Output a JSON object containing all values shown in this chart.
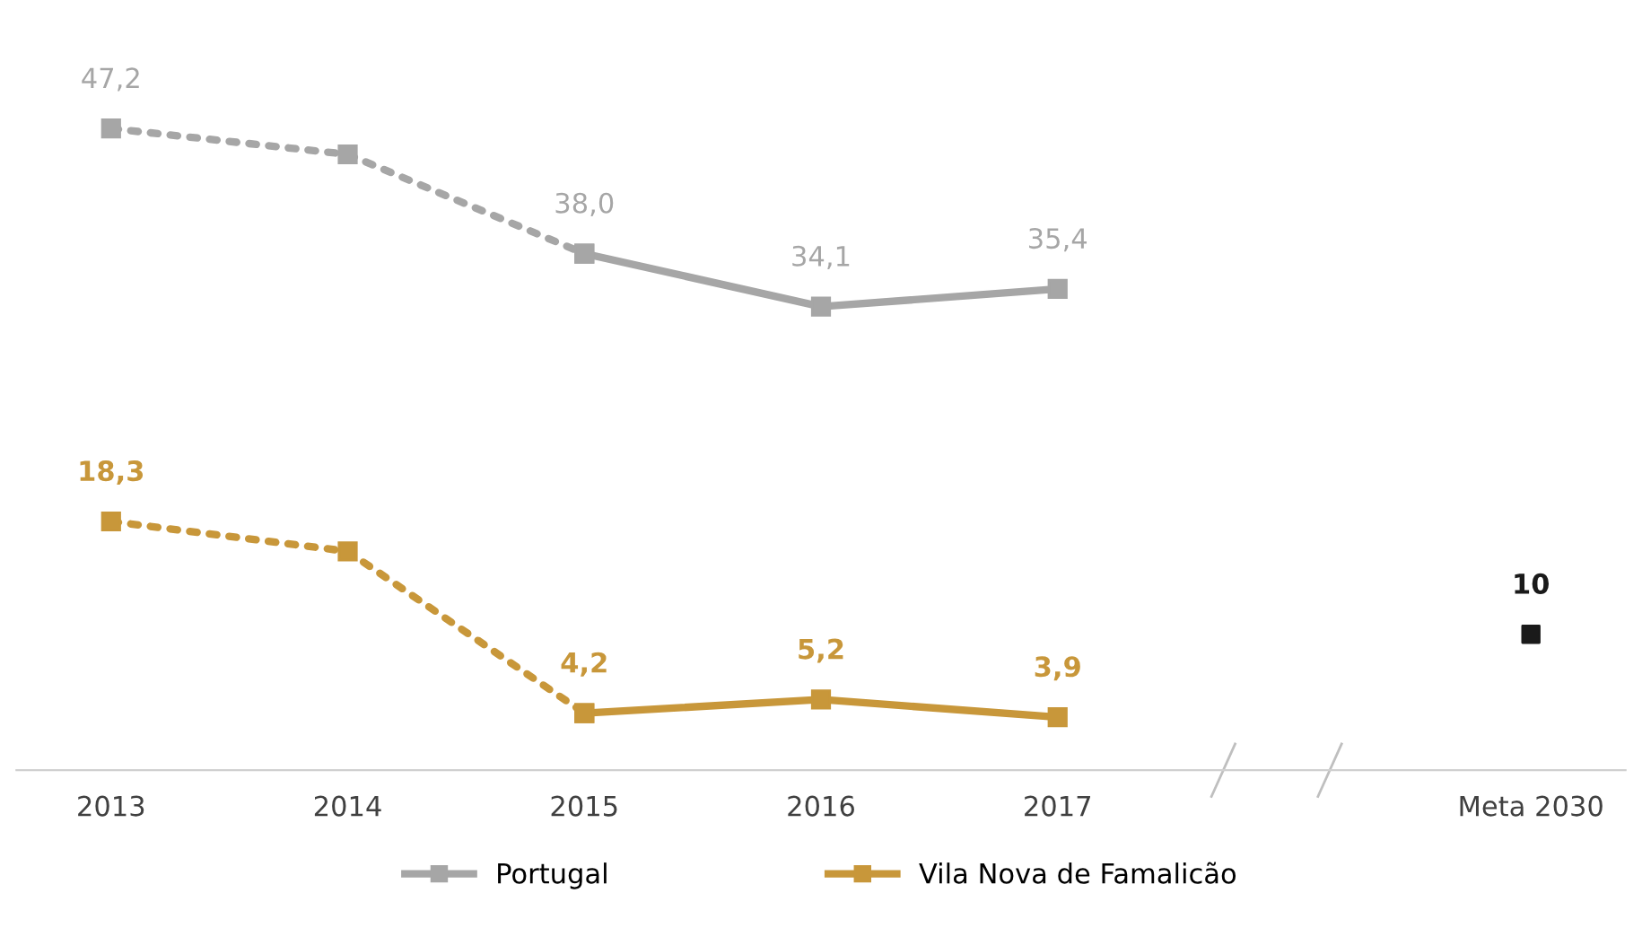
{
  "chart_data": {
    "type": "line",
    "categories": [
      "2013",
      "2014",
      "2015",
      "2016",
      "2017",
      null,
      "Meta 2030"
    ],
    "series": [
      {
        "color": "#a6a6a6",
        "line_style": "dotted",
        "marker": "square",
        "values": [
          47.2,
          45.3,
          38.0,
          null,
          null,
          null,
          null
        ],
        "value_labels": [
          "47,2",
          null,
          null,
          null,
          null,
          null,
          null
        ]
      },
      {
        "name": "Portugal",
        "color": "#a6a6a6",
        "line_style": "solid",
        "marker": "square",
        "values": [
          null,
          null,
          38.0,
          34.1,
          35.4,
          null,
          null
        ],
        "value_labels": [
          null,
          null,
          "38,0",
          "34,1",
          "35,4",
          null,
          null
        ]
      },
      {
        "color": "#c8973a",
        "line_style": "dotted",
        "marker": "square",
        "values": [
          18.3,
          16.1,
          4.2,
          null,
          null,
          null,
          null
        ],
        "value_labels": [
          "18,3",
          null,
          null,
          null,
          null,
          null,
          null
        ]
      },
      {
        "name": "Vila Nova de Famalicão",
        "color": "#c8973a",
        "line_style": "solid",
        "marker": "square",
        "values": [
          null,
          null,
          4.2,
          5.2,
          3.9,
          null,
          null
        ],
        "value_labels": [
          null,
          null,
          "4,2",
          "5,2",
          "3,9",
          null,
          null
        ]
      },
      {
        "type": "scatter",
        "color": "#1a1a1a",
        "marker": "square",
        "values": [
          null,
          null,
          null,
          null,
          null,
          null,
          10
        ],
        "value_labels": [
          null,
          null,
          null,
          null,
          null,
          null,
          "10"
        ]
      }
    ],
    "legend": "bottom",
    "grid": false,
    "tick_labels": "x"
  }
}
